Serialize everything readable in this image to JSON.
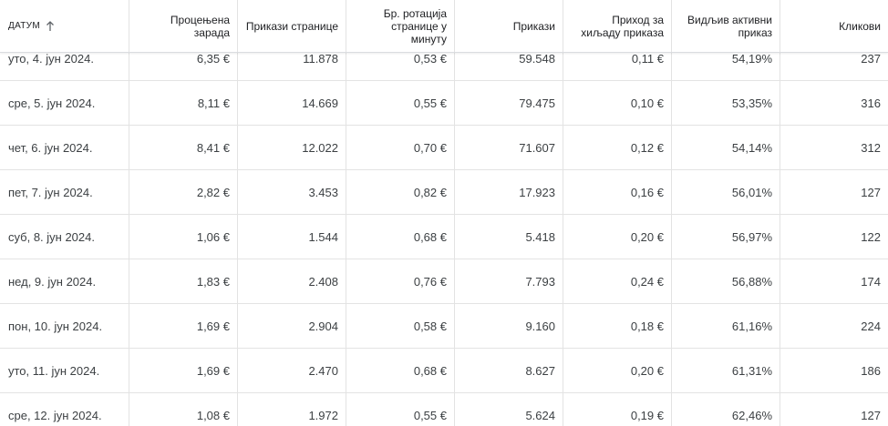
{
  "table": {
    "columns": [
      {
        "label": "ДАТУМ"
      },
      {
        "label": "Процењена зарада"
      },
      {
        "label": "Прикази странице"
      },
      {
        "label": "Бр. ротација странице у минуту"
      },
      {
        "label": "Прикази"
      },
      {
        "label": "Приход за хиљаду приказа"
      },
      {
        "label": "Видљив активни приказ"
      },
      {
        "label": "Кликови"
      }
    ],
    "sort_icon": "arrow-up-icon",
    "rows": [
      [
        "уто, 4. јун 2024.",
        "6,35 €",
        "11.878",
        "0,53 €",
        "59.548",
        "0,11 €",
        "54,19%",
        "237"
      ],
      [
        "сре, 5. јун 2024.",
        "8,11 €",
        "14.669",
        "0,55 €",
        "79.475",
        "0,10 €",
        "53,35%",
        "316"
      ],
      [
        "чет, 6. јун 2024.",
        "8,41 €",
        "12.022",
        "0,70 €",
        "71.607",
        "0,12 €",
        "54,14%",
        "312"
      ],
      [
        "пет, 7. јун 2024.",
        "2,82 €",
        "3.453",
        "0,82 €",
        "17.923",
        "0,16 €",
        "56,01%",
        "127"
      ],
      [
        "суб, 8. јун 2024.",
        "1,06 €",
        "1.544",
        "0,68 €",
        "5.418",
        "0,20 €",
        "56,97%",
        "122"
      ],
      [
        "нед, 9. јун 2024.",
        "1,83 €",
        "2.408",
        "0,76 €",
        "7.793",
        "0,24 €",
        "56,88%",
        "174"
      ],
      [
        "пон, 10. јун 2024.",
        "1,69 €",
        "2.904",
        "0,58 €",
        "9.160",
        "0,18 €",
        "61,16%",
        "224"
      ],
      [
        "уто, 11. јун 2024.",
        "1,69 €",
        "2.470",
        "0,68 €",
        "8.627",
        "0,20 €",
        "61,31%",
        "186"
      ],
      [
        "сре, 12. јун 2024.",
        "1,08 €",
        "1.972",
        "0,55 €",
        "5.624",
        "0,19 €",
        "62,46%",
        "127"
      ]
    ]
  }
}
